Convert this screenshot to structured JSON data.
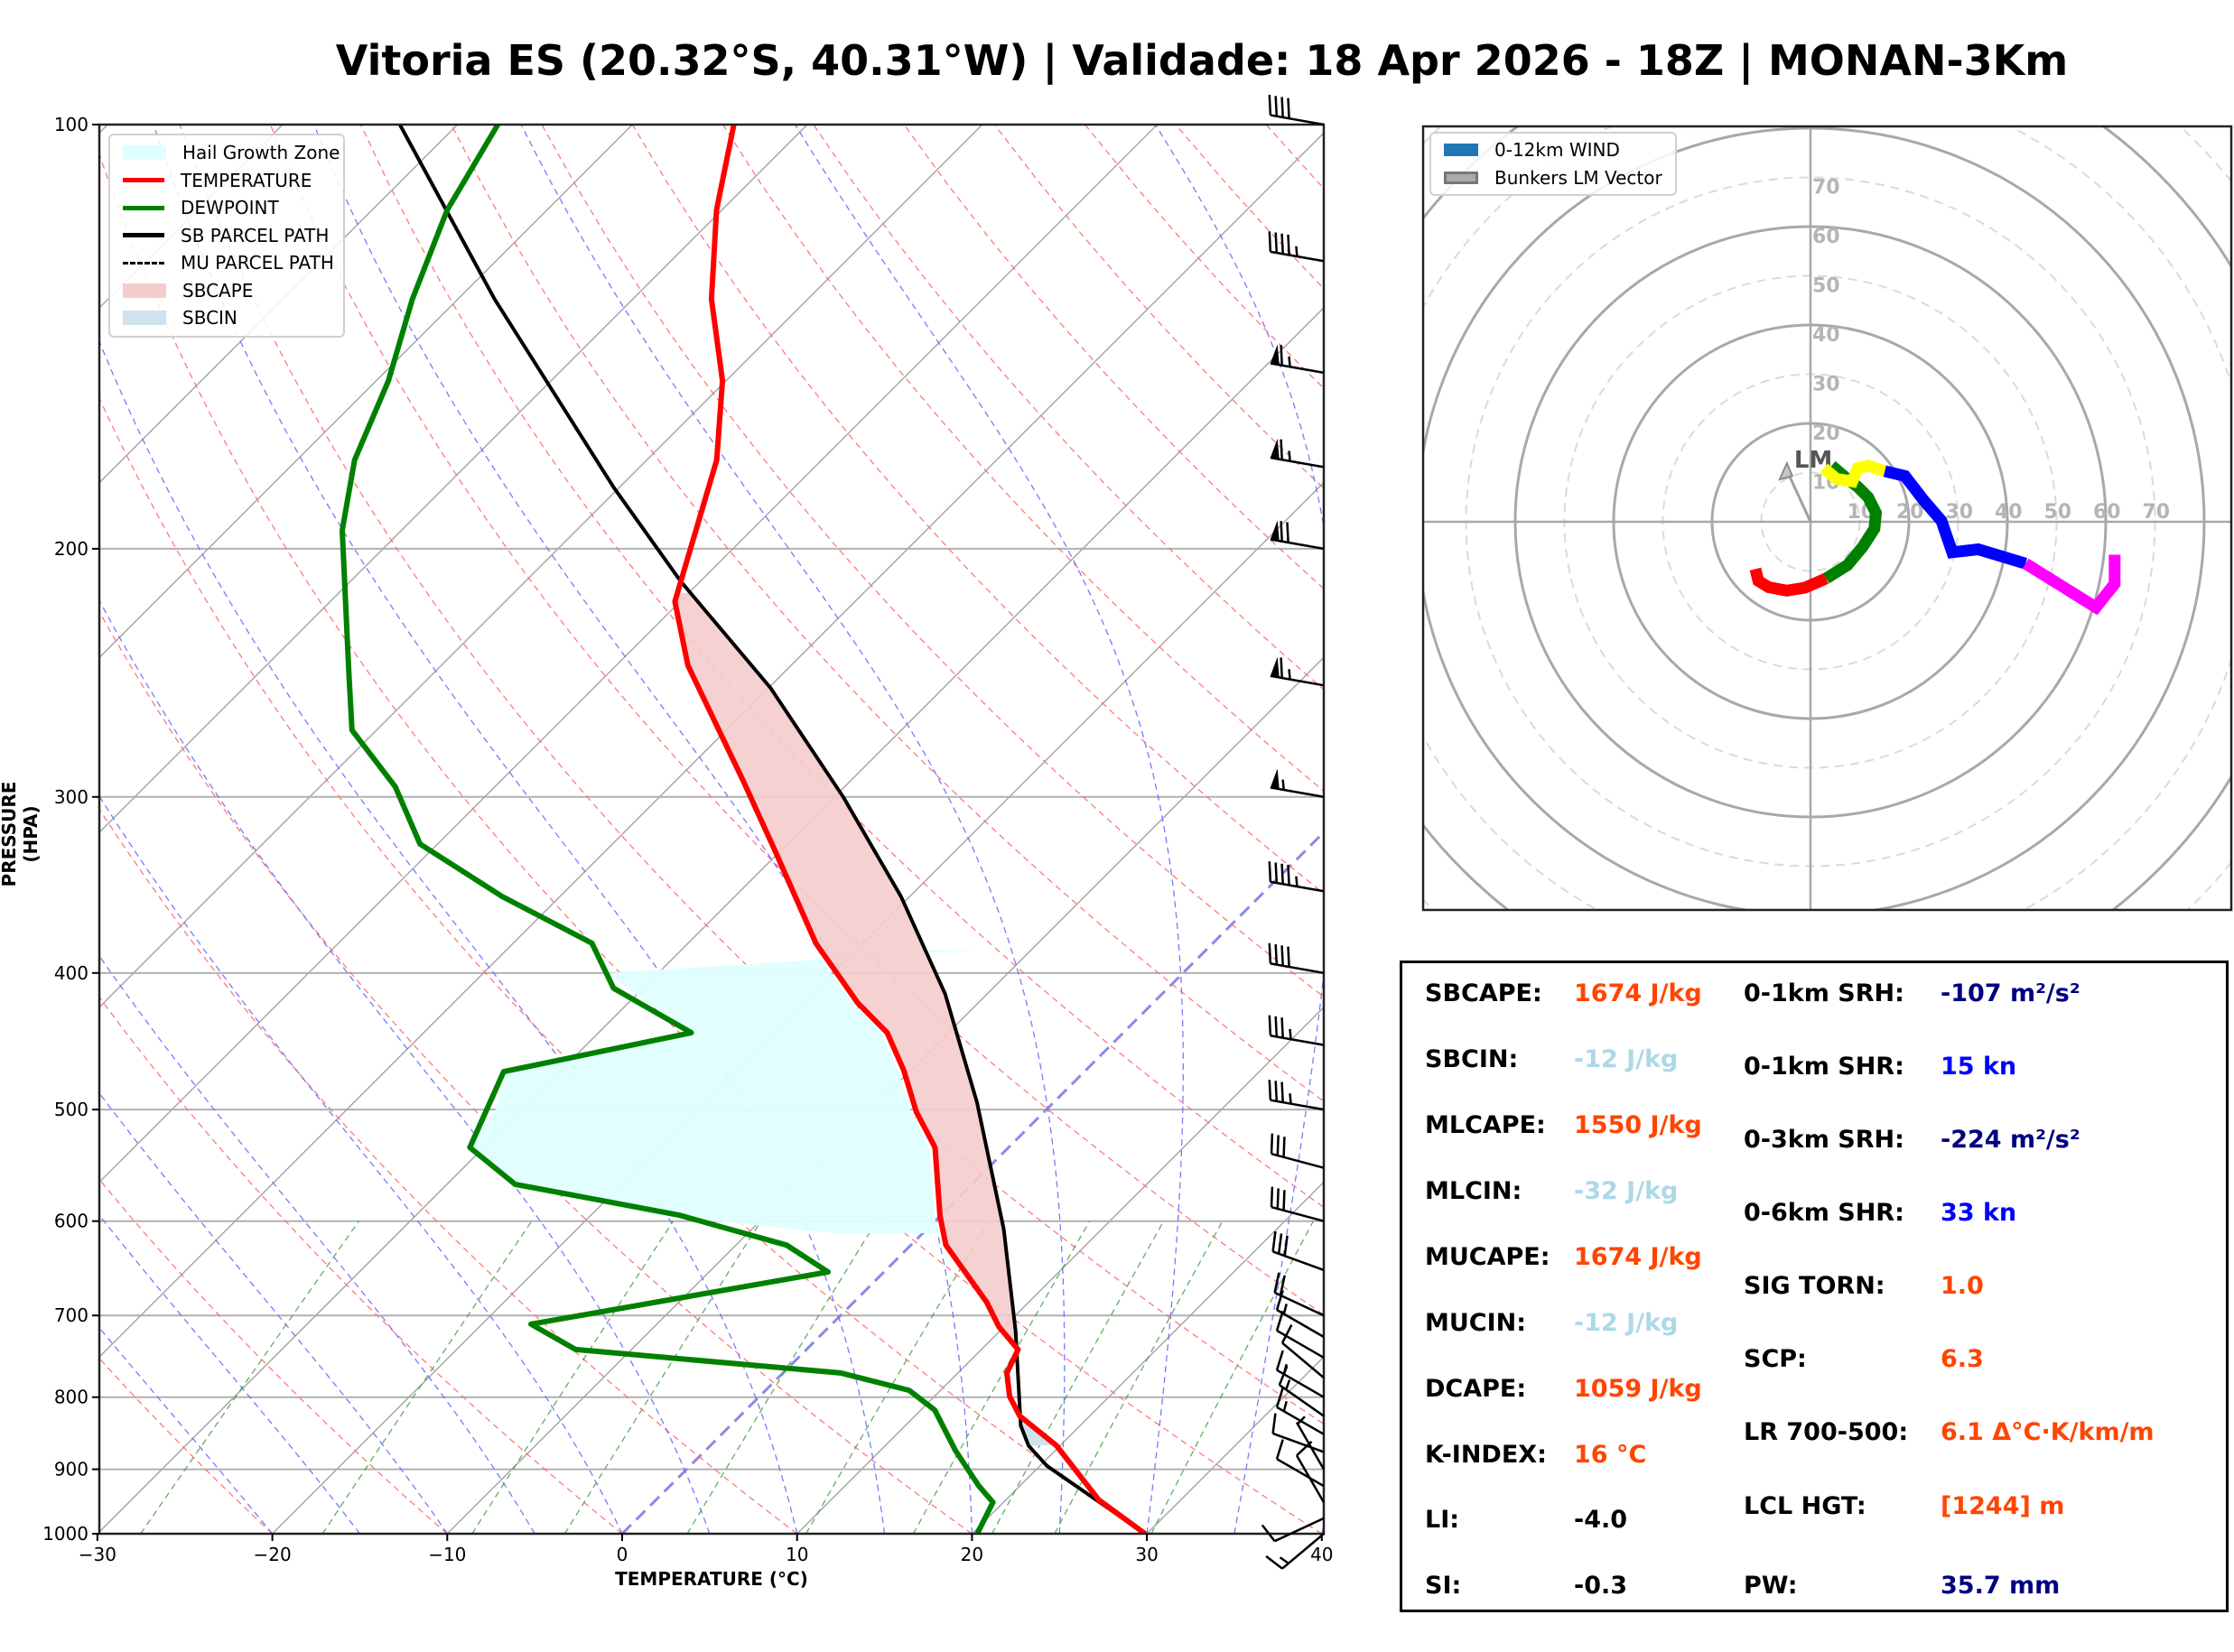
{
  "title": "Vitoria ES (20.32°S, 40.31°W) | Validade: 18 Apr 2026 - 18Z | MONAN-3Km",
  "chart_data": [
    {
      "type": "line",
      "name": "skew-t log-p diagram",
      "xlabel": "TEMPERATURE (°C)",
      "ylabel": "PRESSURE (HPA)",
      "xlim": [
        -30,
        40
      ],
      "ylim": [
        1000,
        100
      ],
      "yscale": "log",
      "skew_deg": 45,
      "xticks": [
        -30,
        -20,
        -10,
        0,
        10,
        20,
        30,
        40
      ],
      "xtick_labels": [
        "−30",
        "−20",
        "−10",
        "0",
        "10",
        "20",
        "30",
        "40"
      ],
      "yticks": [
        100,
        200,
        300,
        400,
        500,
        600,
        700,
        800,
        900,
        1000
      ],
      "ytick_labels": [
        "100",
        "200",
        "300",
        "400",
        "500",
        "600",
        "700",
        "800",
        "900",
        "1000"
      ],
      "grid": true,
      "legend_position": "top-left",
      "legend": [
        {
          "label": "Hail Growth Zone",
          "kind": "fill",
          "color": "#e0ffff"
        },
        {
          "label": "TEMPERATURE",
          "kind": "line",
          "color": "#ff0000"
        },
        {
          "label": "DEWPOINT",
          "kind": "line",
          "color": "#008000"
        },
        {
          "label": "SB PARCEL PATH",
          "kind": "line",
          "color": "#000000"
        },
        {
          "label": "MU PARCEL PATH",
          "kind": "dashed",
          "color": "#000000"
        },
        {
          "label": "SBCAPE",
          "kind": "fill",
          "color": "#f4cccc"
        },
        {
          "label": "SBCIN",
          "kind": "fill",
          "color": "#cfe2ee"
        }
      ],
      "series": [
        {
          "name": "TEMPERATURE",
          "color": "#ff0000",
          "pressure": [
            1000,
            946,
            866,
            825,
            799,
            769,
            740,
            713,
            685,
            624,
            595,
            532,
            502,
            469,
            441,
            420,
            381,
            329,
            293,
            242,
            218,
            173,
            152,
            133,
            115,
            100
          ],
          "values": [
            29.9,
            25.3,
            19.8,
            16.0,
            14.3,
            12.8,
            12.1,
            9.7,
            7.6,
            2.0,
            0.0,
            -4.2,
            -7.3,
            -10.4,
            -13.5,
            -16.9,
            -22.7,
            -30.1,
            -36.0,
            -45.9,
            -50.3,
            -56.0,
            -60.2,
            -65.5,
            -70.3,
            -74.2
          ]
        },
        {
          "name": "DEWPOINT",
          "color": "#008000",
          "pressure": [
            1000,
            950,
            924,
            873,
            817,
            791,
            769,
            740,
            710,
            652,
            624,
            594,
            565,
            532,
            470,
            441,
            410,
            381,
            353,
            324,
            295,
            269,
            244,
            194,
            173,
            152,
            133,
            115,
            100
          ],
          "values": [
            20.3,
            19.4,
            17.6,
            14.3,
            10.8,
            8.2,
            3.3,
            -13.2,
            -17.2,
            -3.2,
            -7.1,
            -15.0,
            -26.1,
            -30.8,
            -33.2,
            -24.7,
            -31.7,
            -35.5,
            -43.3,
            -51.0,
            -55.7,
            -61.4,
            -65.0,
            -73.4,
            -76.7,
            -79.3,
            -82.6,
            -85.7,
            -87.7
          ]
        },
        {
          "name": "SB PARCEL PATH",
          "color": "#000000",
          "pressure": [
            1000,
            895,
            866,
            838,
            718,
            608,
            494,
            414,
            353,
            300,
            251,
            211,
            181,
            133,
            100
          ],
          "values": [
            29.9,
            20.4,
            18.2,
            16.6,
            10.9,
            4.4,
            -4.4,
            -12.4,
            -20.5,
            -29.5,
            -39.9,
            -51.1,
            -60.3,
            -77.9,
            -93.3
          ]
        }
      ],
      "hail_growth_zone": {
        "pressure_range_hpa": [
          385,
          610
        ],
        "temperature_range_c": [
          -30,
          -10
        ]
      },
      "wind_barbs": {
        "pressure": [
          1000,
          975,
          950,
          925,
          900,
          875,
          850,
          825,
          800,
          775,
          750,
          725,
          700,
          650,
          600,
          550,
          500,
          450,
          400,
          350,
          300,
          250,
          200,
          175,
          150,
          125,
          100
        ],
        "speed_kn": [
          15,
          10,
          10,
          10,
          5,
          10,
          15,
          15,
          15,
          10,
          10,
          15,
          20,
          30,
          30,
          30,
          35,
          35,
          40,
          45,
          55,
          65,
          70,
          65,
          65,
          45,
          40
        ]
      }
    },
    {
      "type": "line",
      "name": "hodograph",
      "units": "kn",
      "range": [
        -80,
        80
      ],
      "ring_labels": [
        "10",
        "20",
        "30",
        "40",
        "50",
        "60",
        "70"
      ],
      "legend_position": "top-left",
      "legend": [
        {
          "label": "0-12km WIND",
          "color": "#1f77b4"
        },
        {
          "label": "Bunkers LM Vector",
          "color": "#aaaaaa"
        }
      ],
      "segments": [
        {
          "color": "#ff0000",
          "u": [
            -11.2,
            -10.6,
            -8.5,
            -4.8,
            -1.1,
            3.2
          ],
          "v": [
            -9.6,
            -12.0,
            -13.3,
            -14.0,
            -13.4,
            -11.5
          ]
        },
        {
          "color": "#008000",
          "u": [
            3.2,
            7.5,
            10.6,
            13.0,
            13.3,
            11.7,
            9.6,
            7.5,
            4.3
          ],
          "v": [
            -11.5,
            -8.8,
            -5.1,
            -1.4,
            1.8,
            5.0,
            7.1,
            8.7,
            11.4
          ]
        },
        {
          "color": "#ffff00",
          "u": [
            2.7,
            5.3,
            8.5,
            9.6,
            11.7,
            15.1
          ],
          "v": [
            10.9,
            8.7,
            8.2,
            10.9,
            11.4,
            10.3
          ]
        },
        {
          "color": "#0000ff",
          "u": [
            15.1,
            19.2,
            22.9,
            26.6,
            28.8,
            34.1,
            43.7
          ],
          "v": [
            10.3,
            9.3,
            4.5,
            0.2,
            -6.2,
            -5.6,
            -8.5
          ]
        },
        {
          "color": "#ff00ff",
          "u": [
            43.7,
            51.1,
            58.0,
            61.8,
            61.8
          ],
          "v": [
            -8.5,
            -13.1,
            -17.4,
            -12.6,
            -6.7
          ]
        }
      ],
      "bunkers_lm": {
        "label": "LM",
        "u": -4.8,
        "v": 11.9
      }
    }
  ],
  "stats": {
    "left": [
      {
        "label": "SBCAPE:",
        "value": "1674 J/kg",
        "color": "#ff4500"
      },
      {
        "label": "SBCIN:",
        "value": "-12 J/kg",
        "color": "#add8e6"
      },
      {
        "label": "MLCAPE:",
        "value": "1550 J/kg",
        "color": "#ff4500"
      },
      {
        "label": "MLCIN:",
        "value": "-32 J/kg",
        "color": "#add8e6"
      },
      {
        "label": "MUCAPE:",
        "value": "1674 J/kg",
        "color": "#ff4500"
      },
      {
        "label": "MUCIN:",
        "value": "-12 J/kg",
        "color": "#add8e6"
      },
      {
        "label": "DCAPE:",
        "value": "1059 J/kg",
        "color": "#ff4500"
      },
      {
        "label": "K-INDEX:",
        "value": "16 °C",
        "color": "#ff4500"
      },
      {
        "label": "LI:",
        "value": "-4.0",
        "color": "#000000"
      },
      {
        "label": "SI:",
        "value": "-0.3",
        "color": "#000000"
      }
    ],
    "right": [
      {
        "label": "0-1km SRH:",
        "value": "-107 m²/s²",
        "color": "#000080"
      },
      {
        "label": "0-1km SHR:",
        "value": "15 kn",
        "color": "#0000ff"
      },
      {
        "label": "0-3km SRH:",
        "value": "-224 m²/s²",
        "color": "#000080"
      },
      {
        "label": "0-6km SHR:",
        "value": "33 kn",
        "color": "#0000ff"
      },
      {
        "label": "SIG TORN:",
        "value": "1.0",
        "color": "#ff4500"
      },
      {
        "label": "SCP:",
        "value": "6.3",
        "color": "#ff4500"
      },
      {
        "label": "LR 700-500:",
        "value": "6.1 Δ°C·K/km/m",
        "color": "#ff4500"
      },
      {
        "label": "LCL HGT:",
        "value": "[1244] m",
        "color": "#ff4500"
      },
      {
        "label": "PW:",
        "value": "35.7 mm",
        "color": "#000080"
      }
    ]
  }
}
